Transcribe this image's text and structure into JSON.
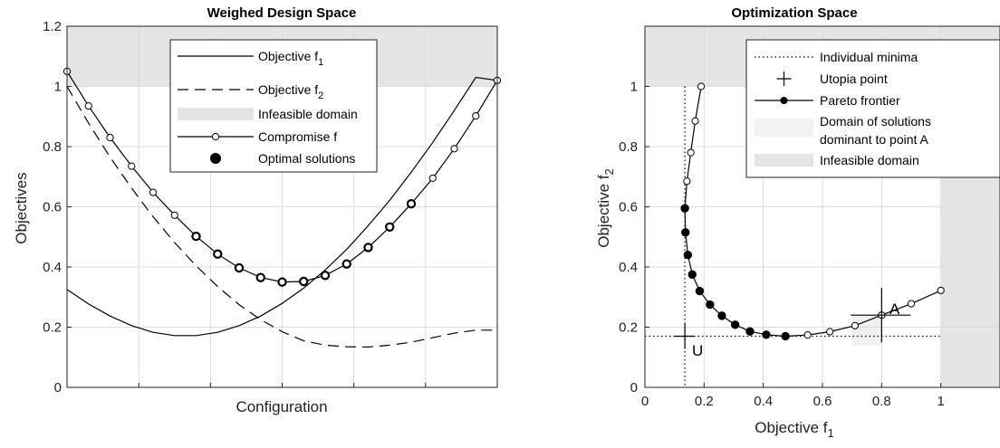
{
  "chart_data": [
    {
      "type": "line",
      "title": "Weighed Design Space",
      "xlabel": "Configuration",
      "ylabel": "Objectives",
      "xlim": [
        0,
        1
      ],
      "ylim": [
        0,
        1.2
      ],
      "yticks": [
        0,
        0.2,
        0.4,
        0.6,
        0.8,
        1,
        1.2
      ],
      "ytick_labels": [
        "0",
        "0.2",
        "0.4",
        "0.6",
        "0.8",
        "1",
        "1.2"
      ],
      "xtick_labels_shown": false,
      "grid": true,
      "legend_position": "top-right",
      "infeasible_region": {
        "y_from": 1.0,
        "y_to": 1.2
      },
      "series": [
        {
          "name": "Objective f",
          "name_sub": "1",
          "style": "solid",
          "x": [
            0,
            0.05,
            0.1,
            0.15,
            0.2,
            0.25,
            0.3,
            0.35,
            0.4,
            0.45,
            0.5,
            0.55,
            0.6,
            0.65,
            0.7,
            0.75,
            0.8,
            0.85,
            0.9,
            0.95,
            1
          ],
          "y": [
            0.325,
            0.277,
            0.237,
            0.205,
            0.183,
            0.172,
            0.172,
            0.183,
            0.205,
            0.237,
            0.279,
            0.33,
            0.39,
            0.459,
            0.537,
            0.622,
            0.715,
            0.814,
            0.92,
            1.03,
            1.02
          ]
        },
        {
          "name": "Objective f",
          "name_sub": "2",
          "style": "dashed",
          "x": [
            0,
            0.05,
            0.1,
            0.15,
            0.2,
            0.25,
            0.3,
            0.35,
            0.4,
            0.45,
            0.5,
            0.55,
            0.6,
            0.65,
            0.7,
            0.75,
            0.8,
            0.85,
            0.9,
            0.95,
            1
          ],
          "y": [
            1.0,
            0.878,
            0.765,
            0.662,
            0.567,
            0.481,
            0.404,
            0.335,
            0.275,
            0.225,
            0.185,
            0.155,
            0.14,
            0.135,
            0.134,
            0.14,
            0.15,
            0.165,
            0.18,
            0.19,
            0.19
          ]
        },
        {
          "name": "Compromise f",
          "style": "solid-open-markers",
          "x": [
            0,
            0.05,
            0.1,
            0.15,
            0.2,
            0.25,
            0.3,
            0.35,
            0.4,
            0.45,
            0.5,
            0.55,
            0.6,
            0.65,
            0.7,
            0.75,
            0.8,
            0.85,
            0.9,
            0.95,
            1
          ],
          "y": [
            1.05,
            0.935,
            0.83,
            0.735,
            0.648,
            0.572,
            0.502,
            0.443,
            0.397,
            0.365,
            0.35,
            0.352,
            0.372,
            0.41,
            0.465,
            0.533,
            0.61,
            0.695,
            0.793,
            0.902,
            1.02
          ]
        }
      ],
      "optimal_indices": [
        6,
        7,
        8,
        9,
        10,
        11,
        12,
        13,
        14,
        15,
        16
      ],
      "legend": [
        {
          "label": "Objective f",
          "sub": "1"
        },
        {
          "label": "Objective f",
          "sub": "2"
        },
        {
          "label": "Infeasible domain"
        },
        {
          "label": "Compromise f"
        },
        {
          "label": "Optimal solutions"
        }
      ]
    },
    {
      "type": "line",
      "title": "Optimization Space",
      "xlabel": "Objective f",
      "xlabel_sub": "1",
      "ylabel": "Objective f",
      "ylabel_sub": "2",
      "xlim": [
        0,
        1.2
      ],
      "ylim": [
        0,
        1.2
      ],
      "xticks": [
        0,
        0.2,
        0.4,
        0.6,
        0.8,
        1
      ],
      "xtick_labels": [
        "0",
        "0.2",
        "0.4",
        "0.6",
        "0.8",
        "1"
      ],
      "yticks": [
        0,
        0.2,
        0.4,
        0.6,
        0.8,
        1
      ],
      "ytick_labels": [
        "0",
        "0.2",
        "0.4",
        "0.6",
        "0.8",
        "1"
      ],
      "grid": true,
      "legend_position": "top-right",
      "infeasible_regions": [
        {
          "x_from": 0,
          "x_to": 1.2,
          "y_from": 1.0,
          "y_to": 1.2
        },
        {
          "x_from": 1.0,
          "x_to": 1.2,
          "y_from": 0,
          "y_to": 1.2
        }
      ],
      "individual_minima": {
        "f1_min": 0.135,
        "f2_min": 0.17
      },
      "utopia_point": {
        "x": 0.135,
        "y": 0.17,
        "label": "U"
      },
      "point_a": {
        "x": 0.8,
        "y": 0.24,
        "label": "A"
      },
      "dominant_region": {
        "x_from": 0.7,
        "x_to": 0.8,
        "y_from": 0.14,
        "y_to": 0.24
      },
      "series": [
        {
          "name": "Pareto frontier",
          "x": [
            0.19,
            0.17,
            0.155,
            0.142,
            0.135,
            0.137,
            0.145,
            0.16,
            0.185,
            0.22,
            0.26,
            0.305,
            0.355,
            0.41,
            0.475,
            0.55,
            0.625,
            0.71,
            0.8,
            0.9,
            1.0
          ],
          "y": [
            1.0,
            0.885,
            0.78,
            0.685,
            0.595,
            0.515,
            0.44,
            0.375,
            0.32,
            0.275,
            0.238,
            0.208,
            0.186,
            0.175,
            0.17,
            0.174,
            0.185,
            0.205,
            0.24,
            0.278,
            0.322
          ],
          "filled_indices": [
            4,
            5,
            6,
            7,
            8,
            9,
            10,
            11,
            12,
            13,
            14
          ]
        }
      ],
      "legend": [
        {
          "label": "Individual minima"
        },
        {
          "label": "Utopia point"
        },
        {
          "label": "Pareto frontier"
        },
        {
          "label": "Domain of solutions",
          "label2": "dominant to point A"
        },
        {
          "label": "Infeasible domain"
        }
      ]
    }
  ]
}
